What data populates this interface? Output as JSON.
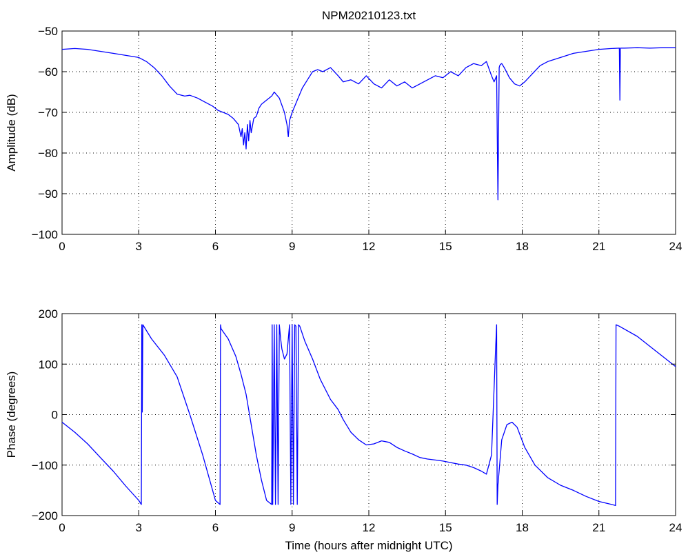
{
  "chart_data": [
    {
      "type": "line",
      "title": "NPM20210123.txt",
      "xlabel": "",
      "ylabel": "Amplitude (dB)",
      "xlim": [
        0,
        24
      ],
      "ylim": [
        -100,
        -50
      ],
      "xticks": [
        0,
        3,
        6,
        9,
        12,
        15,
        18,
        21,
        24
      ],
      "yticks": [
        -100,
        -90,
        -80,
        -70,
        -60,
        -50
      ],
      "xtick_labels": [
        "0",
        "3",
        "6",
        "9",
        "12",
        "15",
        "18",
        "21",
        "24"
      ],
      "ytick_labels": [
        "−100",
        "−90",
        "−80",
        "−70",
        "−60",
        "−50"
      ],
      "grid": true,
      "color": "#0000ff",
      "series": [
        {
          "x": [
            0,
            0.5,
            1,
            1.5,
            2,
            2.5,
            3,
            3.3,
            3.6,
            3.9,
            4.2,
            4.5,
            4.8,
            5.0,
            5.3,
            5.6,
            5.9,
            6.1,
            6.3,
            6.5,
            6.7,
            6.9,
            7.0,
            7.05,
            7.1,
            7.15,
            7.2,
            7.25,
            7.3,
            7.35,
            7.4,
            7.5,
            7.6,
            7.7,
            7.8,
            8.0,
            8.2,
            8.3,
            8.5,
            8.7,
            8.8,
            8.85,
            8.9,
            9.0,
            9.1,
            9.2,
            9.4,
            9.6,
            9.8,
            10.0,
            10.2,
            10.5,
            10.8,
            11.0,
            11.3,
            11.6,
            11.9,
            12.2,
            12.5,
            12.8,
            13.1,
            13.4,
            13.7,
            14.0,
            14.3,
            14.6,
            14.9,
            15.2,
            15.5,
            15.8,
            16.1,
            16.4,
            16.6,
            16.8,
            16.9,
            17.0,
            17.05,
            17.1,
            17.12,
            17.15,
            17.2,
            17.3,
            17.5,
            17.7,
            17.9,
            18.1,
            18.4,
            18.7,
            19.0,
            19.5,
            20.0,
            20.5,
            21.0,
            21.5,
            21.8,
            21.82,
            21.84,
            21.86,
            22.0,
            22.5,
            23.0,
            23.5,
            24.0
          ],
          "y": [
            -54.5,
            -54.3,
            -54.5,
            -55,
            -55.5,
            -56,
            -56.5,
            -57.5,
            -59,
            -61,
            -63.5,
            -65.5,
            -66,
            -65.8,
            -66.5,
            -67.5,
            -68.5,
            -69.5,
            -70,
            -70.5,
            -71.5,
            -73,
            -76,
            -74,
            -78,
            -75,
            -79,
            -73,
            -77,
            -72,
            -75,
            -71.5,
            -71,
            -69,
            -68,
            -67,
            -66,
            -65,
            -66.5,
            -70,
            -73,
            -76,
            -72,
            -70,
            -68.5,
            -67,
            -64,
            -62,
            -60,
            -59.5,
            -60,
            -59,
            -61,
            -62.5,
            -62,
            -63,
            -61,
            -63,
            -64,
            -62,
            -63.5,
            -62.5,
            -64,
            -63,
            -62,
            -61,
            -61.5,
            -60,
            -61,
            -59,
            -58,
            -58.5,
            -57.5,
            -61,
            -62.5,
            -61,
            -91.5,
            -59,
            -58.5,
            -58.2,
            -58,
            -59,
            -61.5,
            -63,
            -63.5,
            -62.5,
            -60.5,
            -58.5,
            -57.5,
            -56.5,
            -55.5,
            -55,
            -54.5,
            -54.3,
            -54.2,
            -67,
            -54.2,
            -54.2,
            -54.2,
            -54.1,
            -54.2,
            -54.1,
            -54.1
          ]
        }
      ]
    },
    {
      "type": "line",
      "title": "",
      "xlabel": "Time (hours after midnight UTC)",
      "ylabel": "Phase (degrees)",
      "xlim": [
        0,
        24
      ],
      "ylim": [
        -200,
        200
      ],
      "xticks": [
        0,
        3,
        6,
        9,
        12,
        15,
        18,
        21,
        24
      ],
      "yticks": [
        -200,
        -100,
        0,
        100,
        200
      ],
      "xtick_labels": [
        "0",
        "3",
        "6",
        "9",
        "12",
        "15",
        "18",
        "21",
        "24"
      ],
      "ytick_labels": [
        "−200",
        "−100",
        "0",
        "100",
        "200"
      ],
      "grid": true,
      "color": "#0000ff",
      "series": [
        {
          "x": [
            0,
            0.5,
            1.0,
            1.5,
            2.0,
            2.5,
            3.0,
            3.1,
            3.12,
            3.14,
            3.16,
            3.5,
            4.0,
            4.5,
            5.0,
            5.5,
            6.0,
            6.18,
            6.2,
            6.22,
            6.5,
            6.8,
            7.0,
            7.2,
            7.4,
            7.6,
            7.8,
            8.0,
            8.2,
            8.22,
            8.24,
            8.3,
            8.35,
            8.4,
            8.45,
            8.5,
            8.55,
            8.6,
            8.7,
            8.8,
            8.9,
            8.95,
            9.0,
            9.05,
            9.1,
            9.15,
            9.2,
            9.25,
            9.3,
            9.5,
            9.8,
            10.1,
            10.5,
            10.8,
            11.0,
            11.3,
            11.6,
            11.9,
            12.2,
            12.5,
            12.8,
            13.1,
            13.4,
            13.7,
            14.0,
            14.3,
            14.6,
            14.9,
            15.2,
            15.5,
            15.8,
            16.1,
            16.4,
            16.6,
            16.8,
            16.95,
            17.0,
            17.02,
            17.05,
            17.2,
            17.4,
            17.6,
            17.8,
            18.1,
            18.5,
            19.0,
            19.5,
            20.0,
            20.5,
            21.0,
            21.5,
            21.65,
            21.67,
            21.8,
            22.5,
            23.0,
            23.5,
            24.0
          ],
          "y": [
            -15,
            -35,
            -58,
            -85,
            -112,
            -142,
            -170,
            -178,
            178,
            5,
            178,
            150,
            118,
            75,
            0,
            -80,
            -170,
            -178,
            178,
            170,
            150,
            115,
            80,
            40,
            -20,
            -80,
            -130,
            -170,
            -178,
            178,
            -178,
            178,
            -178,
            178,
            -178,
            178,
            150,
            130,
            110,
            120,
            178,
            -178,
            178,
            -178,
            178,
            175,
            -178,
            178,
            175,
            145,
            110,
            70,
            30,
            10,
            -10,
            -35,
            -50,
            -60,
            -58,
            -52,
            -55,
            -65,
            -72,
            -78,
            -85,
            -88,
            -90,
            -92,
            -95,
            -98,
            -100,
            -105,
            -112,
            -118,
            -80,
            120,
            178,
            -178,
            -140,
            -50,
            -20,
            -15,
            -25,
            -65,
            -100,
            -125,
            -140,
            -150,
            -162,
            -172,
            -178,
            -180,
            178,
            175,
            155,
            135,
            115,
            95
          ]
        }
      ]
    }
  ]
}
